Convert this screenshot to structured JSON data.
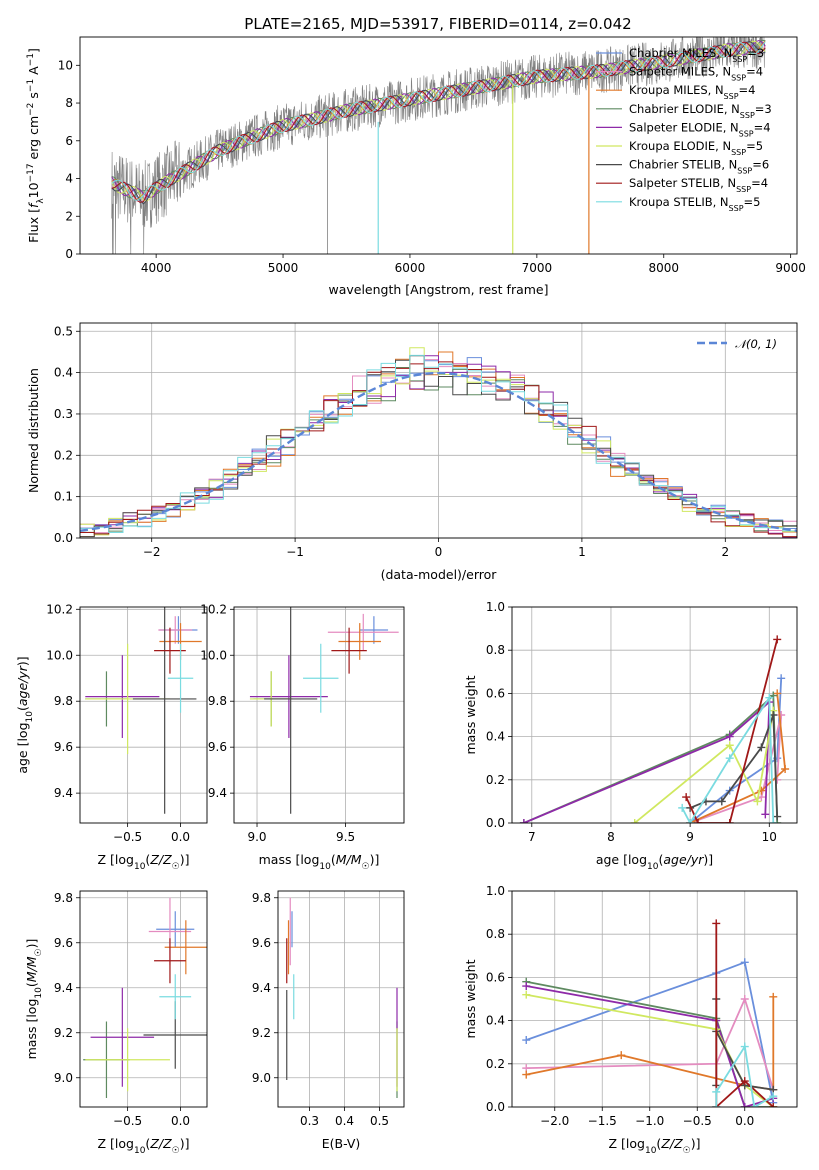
{
  "title": "PLATE=2165, MJD=53917, FIBERID=0114, z=0.042",
  "colors": {
    "chabrier_miles": "#6a8fdc",
    "salpeter_miles": "#e48cc0",
    "kroupa_miles": "#e0782a",
    "chabrier_elodie": "#5e8a60",
    "salpeter_elodie": "#8e2aa8",
    "kroupa_elodie": "#d0e860",
    "chabrier_stelib": "#4a4a4a",
    "salpeter_stelib": "#a01818",
    "kroupa_stelib": "#7adbe0",
    "data": "#808080",
    "normal": "#5b86d6"
  },
  "chart_data": [
    {
      "id": "spectrum",
      "type": "line",
      "xlabel": "wavelength [Angstrom, rest frame]",
      "ylabel": "Flux [f_λ10^-17 erg cm^-2 s^-1 A^-1]",
      "xlim": [
        3400,
        9050
      ],
      "ylim": [
        0,
        11.5
      ],
      "xticks": [
        4000,
        5000,
        6000,
        7000,
        8000,
        9000
      ],
      "yticks": [
        0,
        2,
        4,
        6,
        8,
        10
      ],
      "legend_position": "upper right",
      "legend": [
        {
          "label": "Chabrier MILES, N",
          "sub": "SSP",
          "suffix": "=3",
          "key": "chabrier_miles"
        },
        {
          "label": "Salpeter MILES, N",
          "sub": "SSP",
          "suffix": "=4",
          "key": "salpeter_miles"
        },
        {
          "label": "Kroupa MILES, N",
          "sub": "SSP",
          "suffix": "=4",
          "key": "kroupa_miles"
        },
        {
          "label": "Chabrier ELODIE, N",
          "sub": "SSP",
          "suffix": "=3",
          "key": "chabrier_elodie"
        },
        {
          "label": "Salpeter ELODIE, N",
          "sub": "SSP",
          "suffix": "=4",
          "key": "salpeter_elodie"
        },
        {
          "label": "Kroupa ELODIE, N",
          "sub": "SSP",
          "suffix": "=5",
          "key": "kroupa_elodie"
        },
        {
          "label": "Chabrier STELIB, N",
          "sub": "SSP",
          "suffix": "=6",
          "key": "chabrier_stelib"
        },
        {
          "label": "Salpeter STELIB, N",
          "sub": "SSP",
          "suffix": "=4",
          "key": "salpeter_stelib"
        },
        {
          "label": "Kroupa STELIB, N",
          "sub": "SSP",
          "suffix": "=5",
          "key": "kroupa_stelib"
        }
      ],
      "continuum": {
        "x": [
          3650,
          3700,
          3800,
          3900,
          4000,
          4200,
          4500,
          4800,
          5000,
          5200,
          5500,
          6000,
          6500,
          7000,
          7500,
          8000,
          8500,
          8800
        ],
        "y": [
          3.8,
          3.6,
          3.3,
          3.0,
          3.5,
          4.3,
          5.5,
          6.3,
          6.8,
          7.1,
          7.6,
          8.2,
          8.8,
          9.4,
          9.7,
          10.2,
          10.8,
          11.0
        ]
      }
    },
    {
      "id": "residuals",
      "type": "histogram",
      "xlabel": "(data-model)/error",
      "ylabel": "Normed distribution",
      "xlim": [
        -2.5,
        2.5
      ],
      "ylim": [
        0,
        0.52
      ],
      "xticks": [
        -2,
        -1,
        0,
        1,
        2
      ],
      "yticks": [
        0.0,
        0.1,
        0.2,
        0.3,
        0.4,
        0.5
      ],
      "legend": [
        {
          "label": "𝒩(0, 1)",
          "key": "normal"
        }
      ],
      "bin_width": 0.1
    },
    {
      "id": "age_vs_Z",
      "type": "errorbar",
      "xlabel": "Z [log10(Z/Z☉)]",
      "ylabel": "age  [log10(age/yr)]",
      "xlim": [
        -0.95,
        0.25
      ],
      "ylim": [
        9.27,
        10.21
      ],
      "xticks": [
        -0.5,
        0.0
      ],
      "yticks": [
        9.4,
        9.6,
        9.8,
        10.0,
        10.2
      ],
      "points": [
        {
          "key": "chabrier_miles",
          "x": -0.02,
          "xerr": 0.18,
          "y": 10.11,
          "yerr": 0.06
        },
        {
          "key": "salpeter_miles",
          "x": -0.05,
          "xerr": 0.16,
          "y": 10.11,
          "yerr": 0.06
        },
        {
          "key": "kroupa_miles",
          "x": 0.0,
          "xerr": 0.2,
          "y": 10.06,
          "yerr": 0.08
        },
        {
          "key": "chabrier_elodie",
          "x": -0.7,
          "xerr": 0.2,
          "y": 9.81,
          "yerr": 0.12
        },
        {
          "key": "salpeter_elodie",
          "x": -0.55,
          "xerr": 0.35,
          "y": 9.82,
          "yerr": 0.18
        },
        {
          "key": "kroupa_elodie",
          "x": -0.5,
          "xerr": 0.4,
          "y": 9.81,
          "yerr": 0.24
        },
        {
          "key": "chabrier_stelib",
          "x": -0.15,
          "xerr": 0.3,
          "y": 9.81,
          "yerr": 0.5
        },
        {
          "key": "salpeter_stelib",
          "x": -0.1,
          "xerr": 0.15,
          "y": 10.02,
          "yerr": 0.1
        },
        {
          "key": "kroupa_stelib",
          "x": 0.0,
          "xerr": 0.12,
          "y": 9.9,
          "yerr": 0.15
        }
      ]
    },
    {
      "id": "age_vs_mass",
      "type": "errorbar",
      "xlabel": "mass [log10(M/M☉)]",
      "ylabel": "",
      "xlim": [
        8.87,
        9.83
      ],
      "ylim": [
        9.27,
        10.21
      ],
      "xticks": [
        9.0,
        9.5
      ],
      "yticks": [
        9.4,
        9.6,
        9.8,
        10.0,
        10.2
      ],
      "points": [
        {
          "key": "chabrier_miles",
          "x": 9.66,
          "xerr": 0.08,
          "y": 10.11,
          "yerr": 0.06
        },
        {
          "key": "salpeter_miles",
          "x": 9.6,
          "xerr": 0.2,
          "y": 10.1,
          "yerr": 0.08
        },
        {
          "key": "kroupa_miles",
          "x": 9.58,
          "xerr": 0.12,
          "y": 10.06,
          "yerr": 0.08
        },
        {
          "key": "chabrier_elodie",
          "x": 9.08,
          "xerr": 0.1,
          "y": 9.81,
          "yerr": 0.12
        },
        {
          "key": "salpeter_elodie",
          "x": 9.18,
          "xerr": 0.22,
          "y": 9.82,
          "yerr": 0.18
        },
        {
          "key": "kroupa_elodie",
          "x": 9.08,
          "xerr": 0.12,
          "y": 9.81,
          "yerr": 0.12
        },
        {
          "key": "chabrier_stelib",
          "x": 9.19,
          "xerr": 0.15,
          "y": 9.81,
          "yerr": 0.5
        },
        {
          "key": "salpeter_stelib",
          "x": 9.52,
          "xerr": 0.1,
          "y": 10.02,
          "yerr": 0.1
        },
        {
          "key": "kroupa_stelib",
          "x": 9.36,
          "xerr": 0.1,
          "y": 9.9,
          "yerr": 0.15
        }
      ]
    },
    {
      "id": "weight_vs_age",
      "type": "line",
      "xlabel": "age  [log10(age/yr)]",
      "ylabel": "mass weight",
      "xlim": [
        6.75,
        10.35
      ],
      "ylim": [
        0.0,
        1.0
      ],
      "xticks": [
        7,
        8,
        9,
        10
      ],
      "yticks": [
        0.0,
        0.2,
        0.4,
        0.6,
        0.8,
        1.0
      ],
      "series": [
        {
          "key": "chabrier_miles",
          "x": [
            9.0,
            9.5,
            10.1,
            10.15
          ],
          "y": [
            0.0,
            0.15,
            0.3,
            0.67
          ]
        },
        {
          "key": "salpeter_miles",
          "x": [
            9.0,
            9.9,
            10.15,
            10.1
          ],
          "y": [
            0.0,
            0.12,
            0.5,
            0.2
          ]
        },
        {
          "key": "kroupa_miles",
          "x": [
            9.0,
            9.9,
            10.2,
            10.1
          ],
          "y": [
            0.0,
            0.15,
            0.25,
            0.6
          ]
        },
        {
          "key": "chabrier_elodie",
          "x": [
            6.9,
            9.5,
            10.05,
            10.1
          ],
          "y": [
            0.0,
            0.41,
            0.59,
            0.0
          ]
        },
        {
          "key": "salpeter_elodie",
          "x": [
            6.9,
            9.5,
            10.0,
            9.95
          ],
          "y": [
            0.0,
            0.4,
            0.56,
            0.04
          ]
        },
        {
          "key": "kroupa_elodie",
          "x": [
            8.3,
            9.5,
            9.85,
            10.05
          ],
          "y": [
            0.0,
            0.36,
            0.1,
            0.52
          ]
        },
        {
          "key": "chabrier_stelib",
          "x": [
            9.0,
            9.2,
            9.4,
            9.9,
            10.05,
            10.1
          ],
          "y": [
            0.07,
            0.1,
            0.1,
            0.35,
            0.5,
            0.03
          ]
        },
        {
          "key": "salpeter_stelib",
          "x": [
            8.95,
            9.1,
            9.5,
            10.1
          ],
          "y": [
            0.12,
            0.0,
            0.0,
            0.85
          ]
        },
        {
          "key": "kroupa_stelib",
          "x": [
            8.9,
            9.0,
            9.5,
            10.0,
            10.05
          ],
          "y": [
            0.07,
            0.0,
            0.3,
            0.58,
            0.0
          ]
        }
      ]
    },
    {
      "id": "mass_vs_Z",
      "type": "errorbar",
      "xlabel": "Z [log10(Z/Z☉)]",
      "ylabel": "mass [log10(M/M☉)]",
      "xlim": [
        -0.95,
        0.25
      ],
      "ylim": [
        8.87,
        9.83
      ],
      "xticks": [
        -0.5,
        0.0
      ],
      "yticks": [
        9.0,
        9.2,
        9.4,
        9.6,
        9.8
      ],
      "points": [
        {
          "key": "chabrier_miles",
          "x": -0.05,
          "xerr": 0.18,
          "y": 9.66,
          "yerr": 0.08
        },
        {
          "key": "salpeter_miles",
          "x": -0.1,
          "xerr": 0.2,
          "y": 9.65,
          "yerr": 0.15
        },
        {
          "key": "kroupa_miles",
          "x": 0.05,
          "xerr": 0.2,
          "y": 9.58,
          "yerr": 0.12
        },
        {
          "key": "chabrier_elodie",
          "x": -0.7,
          "xerr": 0.22,
          "y": 9.08,
          "yerr": 0.17
        },
        {
          "key": "salpeter_elodie",
          "x": -0.55,
          "xerr": 0.3,
          "y": 9.18,
          "yerr": 0.22
        },
        {
          "key": "kroupa_elodie",
          "x": -0.5,
          "xerr": 0.4,
          "y": 9.08,
          "yerr": 0.14
        },
        {
          "key": "chabrier_stelib",
          "x": -0.05,
          "xerr": 0.3,
          "y": 9.19,
          "yerr": 0.15
        },
        {
          "key": "salpeter_stelib",
          "x": -0.1,
          "xerr": 0.15,
          "y": 9.52,
          "yerr": 0.1
        },
        {
          "key": "kroupa_stelib",
          "x": -0.05,
          "xerr": 0.15,
          "y": 9.36,
          "yerr": 0.1
        }
      ]
    },
    {
      "id": "mass_vs_ebv",
      "type": "errorbar",
      "xlabel": "E(B-V)",
      "ylabel": "",
      "xlim": [
        0.21,
        0.57
      ],
      "ylim": [
        8.87,
        9.83
      ],
      "xticks": [
        0.3,
        0.4,
        0.5
      ],
      "yticks": [
        9.0,
        9.2,
        9.4,
        9.6,
        9.8
      ],
      "points": [
        {
          "key": "chabrier_miles",
          "x": 0.25,
          "xerr": 0.0,
          "y": 9.66,
          "yerr": 0.08
        },
        {
          "key": "salpeter_miles",
          "x": 0.245,
          "xerr": 0.0,
          "y": 9.65,
          "yerr": 0.15
        },
        {
          "key": "kroupa_miles",
          "x": 0.24,
          "xerr": 0.0,
          "y": 9.58,
          "yerr": 0.12
        },
        {
          "key": "chabrier_elodie",
          "x": 0.55,
          "xerr": 0.0,
          "y": 9.08,
          "yerr": 0.17
        },
        {
          "key": "salpeter_elodie",
          "x": 0.55,
          "xerr": 0.0,
          "y": 9.18,
          "yerr": 0.22
        },
        {
          "key": "kroupa_elodie",
          "x": 0.55,
          "xerr": 0.0,
          "y": 9.08,
          "yerr": 0.14
        },
        {
          "key": "chabrier_stelib",
          "x": 0.235,
          "xerr": 0.0,
          "y": 9.19,
          "yerr": 0.2
        },
        {
          "key": "salpeter_stelib",
          "x": 0.235,
          "xerr": 0.0,
          "y": 9.52,
          "yerr": 0.1
        },
        {
          "key": "kroupa_stelib",
          "x": 0.255,
          "xerr": 0.0,
          "y": 9.36,
          "yerr": 0.1
        }
      ]
    },
    {
      "id": "weight_vs_Z",
      "type": "line",
      "xlabel": "Z [log10(Z/Z☉)]",
      "ylabel": "mass weight",
      "xlim": [
        -2.45,
        0.55
      ],
      "ylim": [
        0.0,
        1.0
      ],
      "xticks": [
        -2.0,
        -1.5,
        -1.0,
        -0.5,
        0.0
      ],
      "yticks": [
        0.0,
        0.2,
        0.4,
        0.6,
        0.8,
        1.0
      ],
      "series": [
        {
          "key": "chabrier_miles",
          "x": [
            -2.3,
            -0.3,
            0.0,
            0.3
          ],
          "y": [
            0.31,
            0.62,
            0.67,
            0.02
          ]
        },
        {
          "key": "salpeter_miles",
          "x": [
            -2.3,
            -0.3,
            0.0,
            0.3
          ],
          "y": [
            0.18,
            0.2,
            0.5,
            0.08
          ]
        },
        {
          "key": "kroupa_miles",
          "x": [
            -2.3,
            -1.3,
            0.0,
            0.3,
            0.3
          ],
          "y": [
            0.15,
            0.24,
            0.1,
            0.08,
            0.51
          ]
        },
        {
          "key": "chabrier_elodie",
          "x": [
            -2.3,
            -0.3,
            0.0,
            0.3
          ],
          "y": [
            0.58,
            0.41,
            0.0,
            0.0
          ]
        },
        {
          "key": "salpeter_elodie",
          "x": [
            -2.3,
            -0.3,
            0.0,
            0.3
          ],
          "y": [
            0.56,
            0.4,
            0.0,
            0.04
          ]
        },
        {
          "key": "kroupa_elodie",
          "x": [
            -2.3,
            -0.3,
            0.0,
            0.3
          ],
          "y": [
            0.52,
            0.36,
            0.1,
            0.0
          ]
        },
        {
          "key": "chabrier_stelib",
          "x": [
            -0.3,
            -0.3,
            -0.3,
            0.0,
            0.3
          ],
          "y": [
            0.5,
            0.1,
            0.35,
            0.1,
            0.08
          ]
        },
        {
          "key": "salpeter_stelib",
          "x": [
            -0.3,
            -0.3,
            0.0,
            0.3
          ],
          "y": [
            0.85,
            0.0,
            0.12,
            0.0
          ]
        },
        {
          "key": "kroupa_stelib",
          "x": [
            -0.3,
            -0.3,
            0.0,
            0.1,
            0.3
          ],
          "y": [
            0.0,
            0.07,
            0.28,
            0.0,
            0.05
          ]
        }
      ]
    }
  ]
}
